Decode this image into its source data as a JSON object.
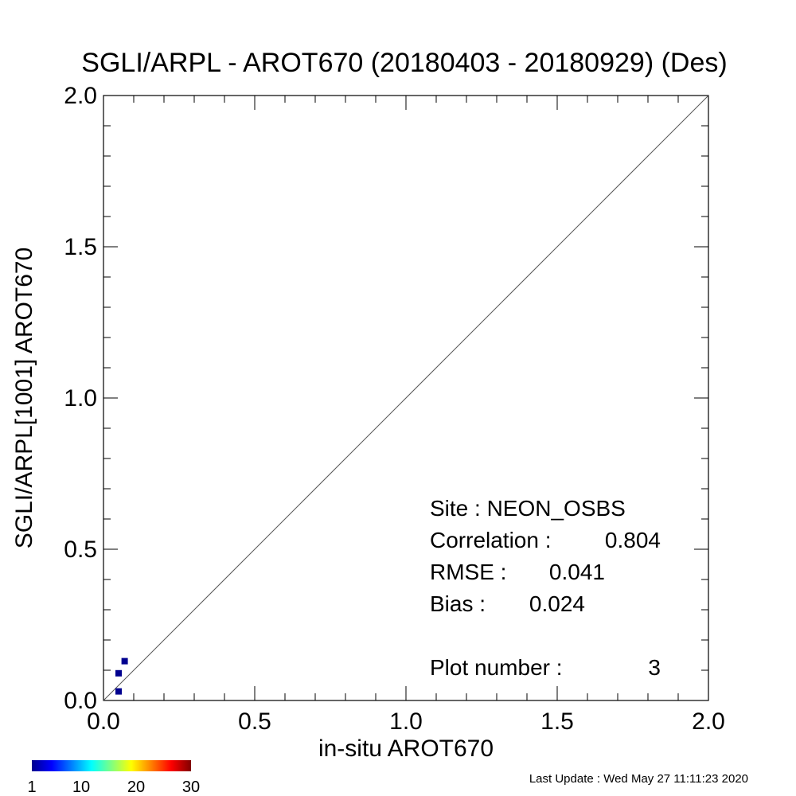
{
  "chart_data": {
    "type": "scatter",
    "title": "SGLI/ARPL - AROT670 (20180403 - 20180929) (Des)",
    "xlabel": "in-situ AROT670",
    "ylabel": "SGLI/ARPL[1001]    AROT670",
    "xlim": [
      0.0,
      2.0
    ],
    "ylim": [
      0.0,
      2.0
    ],
    "x_ticks": [
      "0.0",
      "0.5",
      "1.0",
      "1.5",
      "2.0"
    ],
    "y_ticks": [
      "0.0",
      "0.5",
      "1.0",
      "1.5",
      "2.0"
    ],
    "one_to_one_line": true,
    "grid": false,
    "points": [
      {
        "x": 0.05,
        "y": 0.03,
        "count": 1
      },
      {
        "x": 0.05,
        "y": 0.09,
        "count": 1
      },
      {
        "x": 0.07,
        "y": 0.13,
        "count": 1
      }
    ],
    "stats": {
      "site": "Site : NEON_OSBS",
      "correlation_label": "Correlation :",
      "correlation_value": "0.804",
      "rmse_label": "RMSE :",
      "rmse_value": "0.041",
      "bias_label": "Bias :",
      "bias_value": "0.024",
      "plot_number_label": "Plot number :",
      "plot_number_value": "3"
    },
    "colorbar": {
      "min": 1,
      "max": 30,
      "tick_labels": [
        "1",
        "10",
        "20",
        "30"
      ],
      "tick_values": [
        1,
        10,
        20,
        30
      ],
      "colors": [
        "#00008f",
        "#0000ff",
        "#0080ff",
        "#00ffff",
        "#80ff80",
        "#ffff00",
        "#ff8000",
        "#ff0000",
        "#800000"
      ]
    }
  },
  "footer": {
    "last_update": "Last Update : Wed May 27 11:11:23 2020"
  }
}
